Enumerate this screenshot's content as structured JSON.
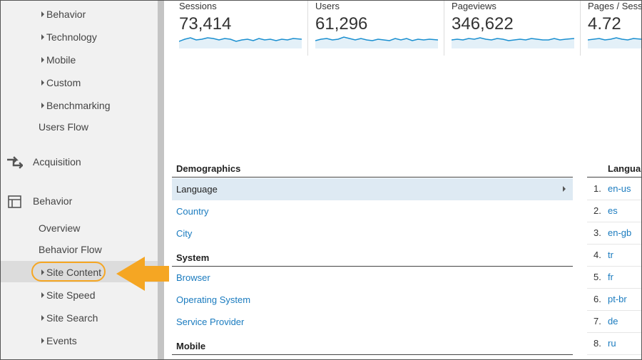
{
  "sidebar": {
    "audience_subitems": [
      {
        "label": "Behavior"
      },
      {
        "label": "Technology"
      },
      {
        "label": "Mobile"
      },
      {
        "label": "Custom"
      },
      {
        "label": "Benchmarking"
      }
    ],
    "users_flow": "Users Flow",
    "acquisition": {
      "label": "Acquisition",
      "icon": "acquisition-arrows-icon"
    },
    "behavior": {
      "label": "Behavior",
      "icon": "behavior-layout-icon"
    },
    "behavior_plain": [
      "Overview",
      "Behavior Flow"
    ],
    "behavior_subitems": [
      {
        "label": "Site Content",
        "selected": true
      },
      {
        "label": "Site Speed"
      },
      {
        "label": "Site Search"
      },
      {
        "label": "Events"
      }
    ],
    "highlight_color": "#f5a623"
  },
  "metrics": [
    {
      "label": "Sessions",
      "value": "73,414"
    },
    {
      "label": "Users",
      "value": "61,296"
    },
    {
      "label": "Pageviews",
      "value": "346,622"
    },
    {
      "label": "Pages / Sess",
      "value": "4.72"
    }
  ],
  "sparkline_color": "#1a8fd0",
  "demographics": {
    "title": "Demographics",
    "items": [
      {
        "label": "Language",
        "active": true
      },
      {
        "label": "Country"
      },
      {
        "label": "City"
      }
    ]
  },
  "system": {
    "title": "System",
    "items": [
      {
        "label": "Browser"
      },
      {
        "label": "Operating System"
      },
      {
        "label": "Service Provider"
      }
    ]
  },
  "mobile": {
    "title": "Mobile"
  },
  "language_table": {
    "header": "Langua",
    "rows": [
      {
        "rank": "1.",
        "code": "en-us"
      },
      {
        "rank": "2.",
        "code": "es"
      },
      {
        "rank": "3.",
        "code": "en-gb"
      },
      {
        "rank": "4.",
        "code": "tr"
      },
      {
        "rank": "5.",
        "code": "fr"
      },
      {
        "rank": "6.",
        "code": "pt-br"
      },
      {
        "rank": "7.",
        "code": "de"
      },
      {
        "rank": "8.",
        "code": "ru"
      }
    ]
  }
}
